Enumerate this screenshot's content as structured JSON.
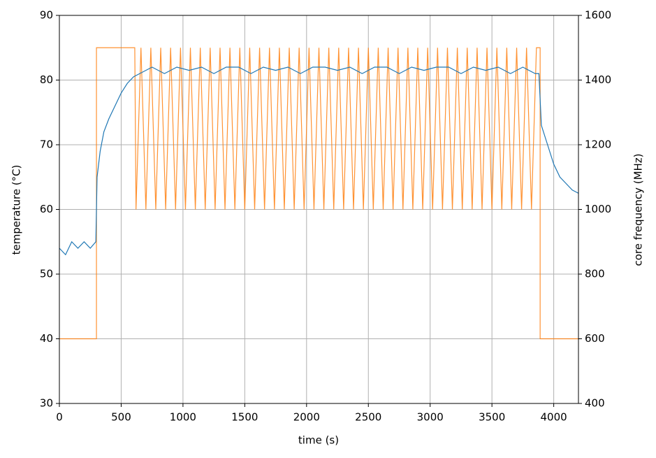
{
  "chart_data": {
    "type": "line",
    "xlabel": "time (s)",
    "ylabel": "temperature (°C)",
    "y2label": "core frequency (MHz)",
    "xlim": [
      0,
      4200
    ],
    "xticks": [
      0,
      500,
      1000,
      1500,
      2000,
      2500,
      3000,
      3500,
      4000
    ],
    "ylim": [
      30,
      90
    ],
    "yticks": [
      30,
      40,
      50,
      60,
      70,
      80,
      90
    ],
    "y2lim": [
      400,
      1600
    ],
    "y2ticks": [
      400,
      600,
      800,
      1000,
      1200,
      1400,
      1600
    ],
    "grid": true,
    "series": [
      {
        "color": "#ff7f0e",
        "axis": "y2",
        "x": [
          0,
          300,
          300,
          610,
          620,
          660,
          700,
          740,
          780,
          820,
          860,
          900,
          940,
          980,
          1020,
          1060,
          1100,
          1140,
          1180,
          1220,
          1260,
          1300,
          1340,
          1380,
          1420,
          1460,
          1500,
          1540,
          1580,
          1620,
          1660,
          1700,
          1740,
          1780,
          1820,
          1860,
          1900,
          1940,
          1980,
          2020,
          2060,
          2100,
          2140,
          2180,
          2220,
          2260,
          2300,
          2340,
          2380,
          2420,
          2460,
          2500,
          2540,
          2580,
          2620,
          2660,
          2700,
          2740,
          2780,
          2820,
          2860,
          2900,
          2940,
          2980,
          3020,
          3060,
          3100,
          3140,
          3180,
          3220,
          3260,
          3300,
          3340,
          3380,
          3420,
          3460,
          3500,
          3540,
          3580,
          3620,
          3660,
          3700,
          3740,
          3780,
          3820,
          3860,
          3890,
          3890,
          4200
        ],
        "values": [
          600,
          600,
          1500,
          1500,
          1000,
          1500,
          1000,
          1500,
          1000,
          1500,
          1000,
          1500,
          1000,
          1500,
          1000,
          1500,
          1000,
          1500,
          1000,
          1500,
          1000,
          1500,
          1000,
          1500,
          1000,
          1500,
          1000,
          1500,
          1000,
          1500,
          1000,
          1500,
          1000,
          1500,
          1000,
          1500,
          1000,
          1500,
          1000,
          1500,
          1000,
          1500,
          1000,
          1500,
          1000,
          1500,
          1000,
          1500,
          1000,
          1500,
          1000,
          1500,
          1000,
          1500,
          1000,
          1500,
          1000,
          1500,
          1000,
          1500,
          1000,
          1500,
          1000,
          1500,
          1000,
          1500,
          1000,
          1500,
          1000,
          1500,
          1000,
          1500,
          1000,
          1500,
          1000,
          1500,
          1000,
          1500,
          1000,
          1500,
          1000,
          1500,
          1000,
          1500,
          1000,
          1500,
          1500,
          600,
          600
        ]
      },
      {
        "color": "#1f77b4",
        "axis": "y",
        "x": [
          0,
          50,
          100,
          150,
          200,
          250,
          295,
          305,
          330,
          360,
          400,
          450,
          500,
          550,
          600,
          650,
          700,
          750,
          850,
          950,
          1050,
          1150,
          1250,
          1350,
          1450,
          1550,
          1650,
          1750,
          1850,
          1950,
          2050,
          2150,
          2250,
          2350,
          2450,
          2550,
          2650,
          2750,
          2850,
          2950,
          3050,
          3150,
          3250,
          3350,
          3450,
          3550,
          3650,
          3750,
          3850,
          3880,
          3900,
          3950,
          4000,
          4050,
          4100,
          4150,
          4200
        ],
        "values": [
          54,
          53,
          55,
          54,
          55,
          54,
          55,
          65,
          69,
          72,
          74,
          76,
          78,
          79.5,
          80.5,
          81,
          81.5,
          82,
          81,
          82,
          81.5,
          82,
          81,
          82,
          82,
          81,
          82,
          81.5,
          82,
          81,
          82,
          82,
          81.5,
          82,
          81,
          82,
          82,
          81,
          82,
          81.5,
          82,
          82,
          81,
          82,
          81.5,
          82,
          81,
          82,
          81,
          81,
          73,
          70,
          67,
          65,
          64,
          63,
          62.5
        ]
      }
    ]
  }
}
